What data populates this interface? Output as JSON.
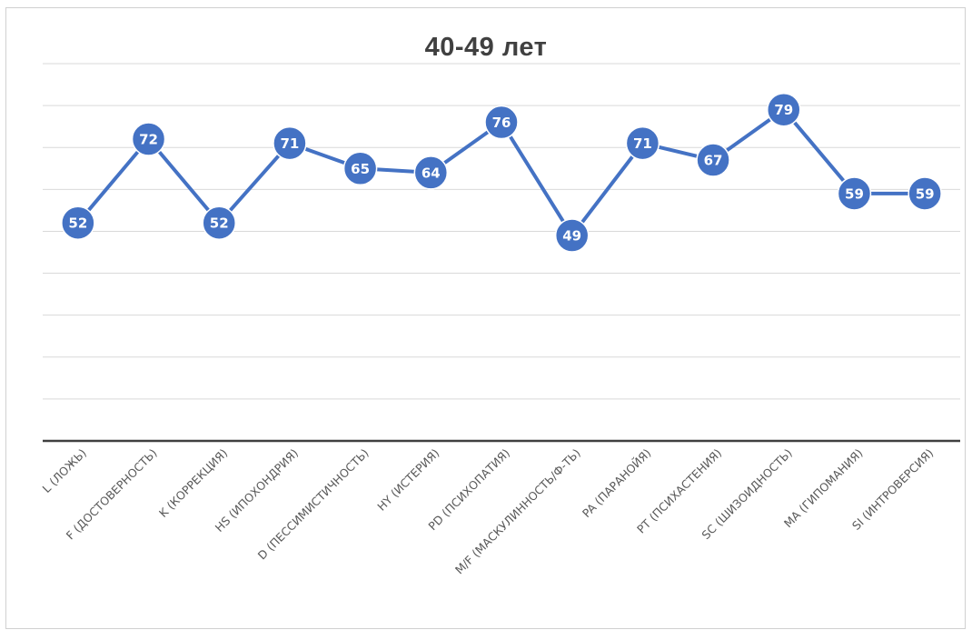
{
  "chart_data": {
    "type": "line",
    "title": "40-49 лет",
    "xlabel": "",
    "ylabel": "",
    "categories": [
      "L (ЛОЖЬ)",
      "F (ДОСТОВЕРНОСТЬ)",
      "K (КОРРЕКЦИЯ)",
      "HS (ИПОХОНДРИЯ)",
      "D (ПЕССИМИСТИЧНОСТЬ)",
      "HY (ИСТЕРИЯ)",
      "PD (ПСИХОПАТИЯ)",
      "M/F (МАСКУЛИННОСТЬ/Ф-ТЬ)",
      "PA (ПАРАНОЙЯ)",
      "PT (ПСИХАСТЕНИЯ)",
      "SC (ШИЗОИДНОСТЬ)",
      "MA (ГИПОМАНИЯ)",
      "SI (ИНТРОВЕРСИЯ)"
    ],
    "series": [
      {
        "values": [
          52,
          72,
          52,
          71,
          65,
          64,
          76,
          49,
          71,
          67,
          79,
          59,
          59
        ]
      }
    ],
    "ylim": [
      0,
      90
    ],
    "y_axis_visible": false,
    "grid": true,
    "data_labels": "inside-markers",
    "colors": {
      "line": "#4472c4",
      "marker": "#4472c4",
      "label": "#ffffff",
      "grid": "#d9d9d9",
      "axis": "#404040"
    }
  }
}
